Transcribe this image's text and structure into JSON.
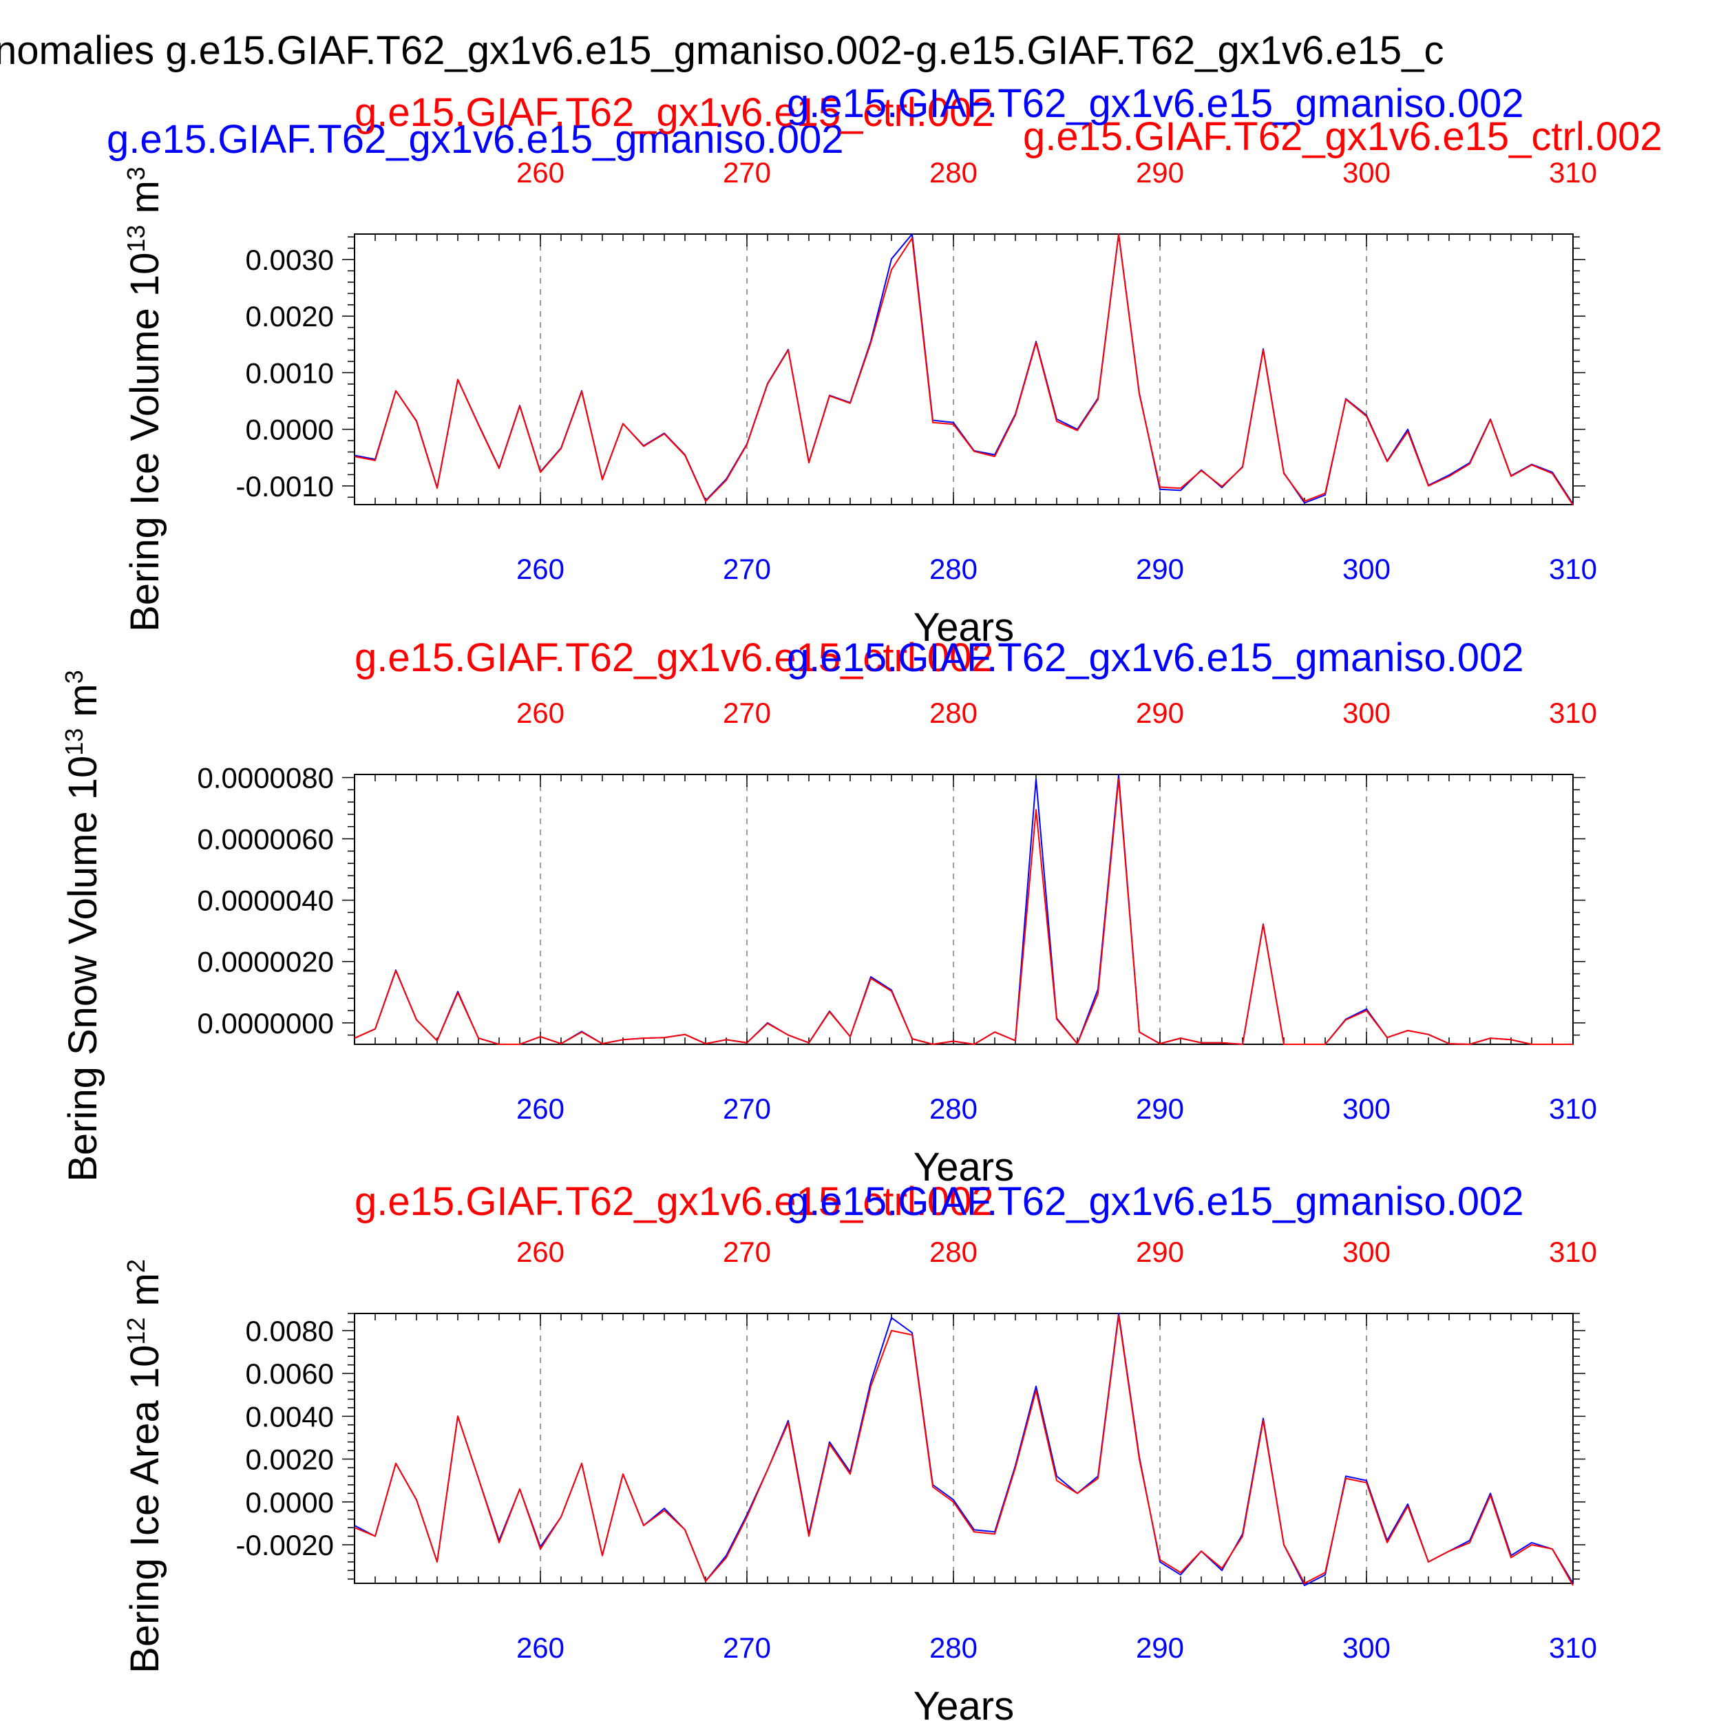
{
  "figure": {
    "title": "nomalies g.e15.GIAF.T62_gx1v6.e15_gmaniso.002-g.e15.GIAF.T62_gx1v6.e15_c",
    "top_left_label": "g.e15.GIAF.T62_gx1v6.e15_gmaniso.002",
    "top_right_label": "g.e15.GIAF.T62_gx1v6.e15_ctrl.002"
  },
  "colors": {
    "exp": "#0000ff",
    "ctrl": "#ff0000",
    "axis": "#000000",
    "grid": "#9a9a9a"
  },
  "chart_data": [
    {
      "type": "line",
      "ylabel": "Bering Ice Volume 10",
      "yunit_exp": "13",
      "yunit_tail": " m",
      "yunit_sup2": "3",
      "xlabel": "Years",
      "ctrl_label": "g.e15.GIAF.T62_gx1v6.e15_ctrl.002",
      "exp_label": "g.e15.GIAF.T62_gx1v6.e15_gmaniso.002",
      "xlim": [
        251,
        310
      ],
      "ylim": [
        -0.00133,
        0.00345
      ],
      "xticks": [
        260,
        270,
        280,
        290,
        300,
        310
      ],
      "xtick_labels": [
        "260",
        "270",
        "280",
        "290",
        "300",
        "310"
      ],
      "yticks": [
        -0.001,
        0.0,
        0.001,
        0.002,
        0.003
      ],
      "ytick_labels": [
        "-0.0010",
        "0.0000",
        "0.0010",
        "0.0020",
        "0.0030"
      ],
      "grid": "vertical dashed at major x ticks",
      "x": [
        251,
        252,
        253,
        254,
        255,
        256,
        257,
        258,
        259,
        260,
        261,
        262,
        263,
        264,
        265,
        266,
        267,
        268,
        269,
        270,
        271,
        272,
        273,
        274,
        275,
        276,
        277,
        278,
        279,
        280,
        281,
        282,
        283,
        284,
        285,
        286,
        287,
        288,
        289,
        290,
        291,
        292,
        293,
        294,
        295,
        296,
        297,
        298,
        299,
        300,
        301,
        302,
        303,
        304,
        305,
        306,
        307,
        308,
        309,
        310
      ],
      "series": [
        {
          "name": "g.e15.GIAF.T62_gx1v6.e15_gmaniso.002",
          "color": "#0000ff",
          "values": [
            -0.00046,
            -0.00053,
            0.00068,
            0.00015,
            -0.00103,
            0.00088,
            9e-05,
            -0.00068,
            0.00042,
            -0.00075,
            -0.00033,
            0.00068,
            -0.00088,
            0.0001,
            -0.00029,
            -7e-05,
            -0.00045,
            -0.00126,
            -0.00088,
            -0.00026,
            0.00081,
            0.00141,
            -0.00058,
            0.0006,
            0.00047,
            0.00156,
            0.00301,
            0.00345,
            0.00016,
            0.00012,
            -0.00038,
            -0.00045,
            0.00027,
            0.00155,
            0.00018,
            0.0,
            0.00055,
            0.00345,
            0.00064,
            -0.00106,
            -0.00108,
            -0.00072,
            -0.00103,
            -0.00066,
            0.00142,
            -0.00077,
            -0.0013,
            -0.00116,
            0.00054,
            0.00025,
            -0.00056,
            0.0,
            -0.00099,
            -0.00081,
            -0.00059,
            0.00018,
            -0.00082,
            -0.00062,
            -0.00076,
            -0.00132
          ]
        },
        {
          "name": "g.e15.GIAF.T62_gx1v6.e15_ctrl.002",
          "color": "#ff0000",
          "values": [
            -0.00048,
            -0.00055,
            0.00068,
            0.00014,
            -0.00104,
            0.00088,
            8e-05,
            -0.00069,
            0.00041,
            -0.00076,
            -0.00034,
            0.00067,
            -0.00089,
            0.0001,
            -0.0003,
            -8e-05,
            -0.00046,
            -0.00127,
            -0.0009,
            -0.00027,
            0.0008,
            0.0014,
            -0.00059,
            0.00059,
            0.00046,
            0.00153,
            0.00282,
            0.00338,
            0.00012,
            9e-05,
            -0.00039,
            -0.00048,
            0.00025,
            0.00153,
            0.00014,
            -2e-05,
            0.00053,
            0.00344,
            0.00062,
            -0.00102,
            -0.00104,
            -0.00073,
            -0.00101,
            -0.00067,
            0.0014,
            -0.00078,
            -0.00127,
            -0.00113,
            0.00053,
            0.00023,
            -0.00057,
            -4e-05,
            -0.001,
            -0.00083,
            -0.00061,
            0.00017,
            -0.00083,
            -0.00063,
            -0.00078,
            -0.00134
          ]
        }
      ]
    },
    {
      "type": "line",
      "ylabel": "Bering Snow Volume 10",
      "yunit_exp": "13",
      "yunit_tail": " m",
      "yunit_sup2": "3",
      "xlabel": "Years",
      "ctrl_label": "g.e15.GIAF.T62_gx1v6.e15_ctrl.002",
      "exp_label": "g.e15.GIAF.T62_gx1v6.e15_gmaniso.002",
      "xlim": [
        251,
        310
      ],
      "ylim": [
        -7e-08,
        8.1e-07
      ],
      "xticks": [
        260,
        270,
        280,
        290,
        300,
        310
      ],
      "xtick_labels": [
        "260",
        "270",
        "280",
        "290",
        "300",
        "310"
      ],
      "yticks": [
        0.0,
        2e-07,
        4e-07,
        6e-07,
        8e-07
      ],
      "ytick_labels": [
        "0.0000000",
        "0.0000020",
        "0.0000040",
        "0.0000060",
        "0.0000080"
      ],
      "grid": "vertical dashed at major x ticks",
      "x": [
        251,
        252,
        253,
        254,
        255,
        256,
        257,
        258,
        259,
        260,
        261,
        262,
        263,
        264,
        265,
        266,
        267,
        268,
        269,
        270,
        271,
        272,
        273,
        274,
        275,
        276,
        277,
        278,
        279,
        280,
        281,
        282,
        283,
        284,
        285,
        286,
        287,
        288,
        289,
        290,
        291,
        292,
        293,
        294,
        295,
        296,
        297,
        298,
        299,
        300,
        301,
        302,
        303,
        304,
        305,
        306,
        307,
        308,
        309,
        310
      ],
      "series": [
        {
          "name": "g.e15.GIAF.T62_gx1v6.e15_gmaniso.002",
          "color": "#0000ff",
          "values": [
            -5e-08,
            -2e-08,
            1.72e-07,
            1e-08,
            -5.8e-08,
            1.02e-07,
            -5e-08,
            -7e-08,
            -7e-08,
            -4.5e-08,
            -6.8e-08,
            -2.8e-08,
            -6.8e-08,
            -5.5e-08,
            -5e-08,
            -4.8e-08,
            -3.8e-08,
            -6.8e-08,
            -5.5e-08,
            -6.5e-08,
            0.0,
            -4e-08,
            -6.5e-08,
            3.8e-08,
            -4.5e-08,
            1.5e-07,
            1.07e-07,
            -5.2e-08,
            -7e-08,
            -6e-08,
            -7e-08,
            -3e-08,
            -5.8e-08,
            7.95e-07,
            1.5e-08,
            -6.8e-08,
            1.1e-07,
            8.08e-07,
            -3e-08,
            -6.8e-08,
            -5e-08,
            -6.5e-08,
            -6.5e-08,
            -7e-08,
            3.22e-07,
            -7e-08,
            -7e-08,
            -7e-08,
            1.2e-08,
            4.5e-08,
            -4.8e-08,
            -2.5e-08,
            -3.8e-08,
            -6.8e-08,
            -7e-08,
            -5e-08,
            -5.5e-08,
            -7e-08,
            -7e-08,
            -7e-08
          ]
        },
        {
          "name": "g.e15.GIAF.T62_gx1v6.e15_ctrl.002",
          "color": "#ff0000",
          "values": [
            -5e-08,
            -2e-08,
            1.7e-07,
            1e-08,
            -5.8e-08,
            9.8e-08,
            -5e-08,
            -7e-08,
            -7e-08,
            -4.5e-08,
            -6.8e-08,
            -3e-08,
            -6.8e-08,
            -5.5e-08,
            -5e-08,
            -4.8e-08,
            -3.8e-08,
            -6.8e-08,
            -5.5e-08,
            -6.5e-08,
            -2e-09,
            -4e-08,
            -6.5e-08,
            3.6e-08,
            -4.5e-08,
            1.45e-07,
            1.03e-07,
            -5.2e-08,
            -7e-08,
            -6e-08,
            -7e-08,
            -3e-08,
            -5.8e-08,
            6.95e-07,
            1.2e-08,
            -6.8e-08,
            9.5e-08,
            7.95e-07,
            -3e-08,
            -6.8e-08,
            -5e-08,
            -6.5e-08,
            -6.5e-08,
            -7e-08,
            3.2e-07,
            -7e-08,
            -7e-08,
            -7e-08,
            1e-08,
            4e-08,
            -4.8e-08,
            -2.5e-08,
            -3.8e-08,
            -6.8e-08,
            -7e-08,
            -5e-08,
            -5.5e-08,
            -7e-08,
            -7e-08,
            -7e-08
          ]
        }
      ]
    },
    {
      "type": "line",
      "ylabel": "Bering Ice Area 10",
      "yunit_exp": "12",
      "yunit_tail": " m",
      "yunit_sup2": "2",
      "xlabel": "Years",
      "ctrl_label": "g.e15.GIAF.T62_gx1v6.e15_ctrl.002",
      "exp_label": "g.e15.GIAF.T62_gx1v6.e15_gmaniso.002",
      "xlim": [
        251,
        310
      ],
      "ylim": [
        -0.0038,
        0.0088
      ],
      "xticks": [
        260,
        270,
        280,
        290,
        300,
        310
      ],
      "xtick_labels": [
        "260",
        "270",
        "280",
        "290",
        "300",
        "310"
      ],
      "yticks": [
        -0.002,
        0.0,
        0.002,
        0.004,
        0.006,
        0.008
      ],
      "ytick_labels": [
        "-0.0020",
        "0.0000",
        "0.0020",
        "0.0040",
        "0.0060",
        "0.0080"
      ],
      "grid": "vertical dashed at major x ticks",
      "x": [
        251,
        252,
        253,
        254,
        255,
        256,
        257,
        258,
        259,
        260,
        261,
        262,
        263,
        264,
        265,
        266,
        267,
        268,
        269,
        270,
        271,
        272,
        273,
        274,
        275,
        276,
        277,
        278,
        279,
        280,
        281,
        282,
        283,
        284,
        285,
        286,
        287,
        288,
        289,
        290,
        291,
        292,
        293,
        294,
        295,
        296,
        297,
        298,
        299,
        300,
        301,
        302,
        303,
        304,
        305,
        306,
        307,
        308,
        309,
        310
      ],
      "series": [
        {
          "name": "g.e15.GIAF.T62_gx1v6.e15_gmaniso.002",
          "color": "#0000ff",
          "values": [
            -0.0011,
            -0.0016,
            0.0018,
            0.0001,
            -0.0028,
            0.004,
            0.0011,
            -0.0018,
            0.0006,
            -0.0021,
            -0.0007,
            0.0018,
            -0.0025,
            0.0013,
            -0.0011,
            -0.0003,
            -0.0013,
            -0.0037,
            -0.0025,
            -0.0006,
            0.0015,
            0.0038,
            -0.0015,
            0.0028,
            0.0014,
            0.0056,
            0.0086,
            0.0079,
            0.0008,
            0.0001,
            -0.0013,
            -0.0014,
            0.0017,
            0.0054,
            0.0012,
            0.0004,
            0.0012,
            0.0088,
            0.0021,
            -0.0028,
            -0.0034,
            -0.0023,
            -0.0032,
            -0.0015,
            0.0039,
            -0.002,
            -0.0039,
            -0.0034,
            0.0012,
            0.001,
            -0.0018,
            -0.0001,
            -0.0028,
            -0.0023,
            -0.0018,
            0.0004,
            -0.0025,
            -0.0019,
            -0.0022,
            -0.0038
          ]
        },
        {
          "name": "g.e15.GIAF.T62_gx1v6.e15_ctrl.002",
          "color": "#ff0000",
          "values": [
            -0.0012,
            -0.0016,
            0.0018,
            0.0001,
            -0.0028,
            0.004,
            0.0011,
            -0.0019,
            0.0006,
            -0.0022,
            -0.0007,
            0.0018,
            -0.0025,
            0.0013,
            -0.0011,
            -0.0004,
            -0.0013,
            -0.0037,
            -0.0026,
            -0.0007,
            0.0015,
            0.0037,
            -0.0016,
            0.0027,
            0.0013,
            0.0054,
            0.008,
            0.0078,
            0.0007,
            0.0,
            -0.0014,
            -0.0015,
            0.0016,
            0.0052,
            0.001,
            0.0004,
            0.0011,
            0.0087,
            0.002,
            -0.0027,
            -0.0033,
            -0.0023,
            -0.0031,
            -0.0016,
            0.0038,
            -0.002,
            -0.0038,
            -0.0033,
            0.0011,
            0.0009,
            -0.0019,
            -0.0002,
            -0.0028,
            -0.0023,
            -0.0019,
            0.0003,
            -0.0026,
            -0.002,
            -0.0022,
            -0.0039
          ]
        }
      ]
    }
  ]
}
